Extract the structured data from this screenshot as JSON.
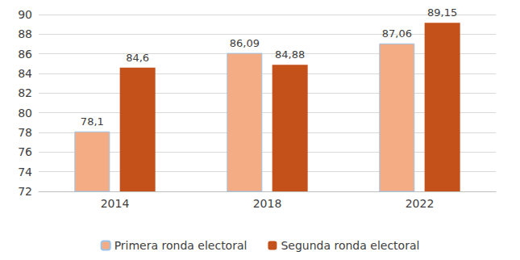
{
  "chart_data": {
    "type": "bar",
    "categories": [
      "2014",
      "2018",
      "2022"
    ],
    "series": [
      {
        "name": "Primera ronda electoral",
        "color": "#f4ac84",
        "values": [
          78.1,
          86.09,
          87.06
        ],
        "value_labels": [
          "78,1",
          "86,09",
          "87,06"
        ]
      },
      {
        "name": "Segunda ronda electoral",
        "color": "#c4501a",
        "values": [
          84.6,
          84.88,
          89.15
        ],
        "value_labels": [
          "84,6",
          "84,88",
          "89,15"
        ]
      }
    ],
    "ylim": [
      72,
      90
    ],
    "yticks": [
      72,
      74,
      76,
      78,
      80,
      82,
      84,
      86,
      88,
      90
    ],
    "grid": true,
    "legend": "bottom",
    "data_labels": true
  }
}
